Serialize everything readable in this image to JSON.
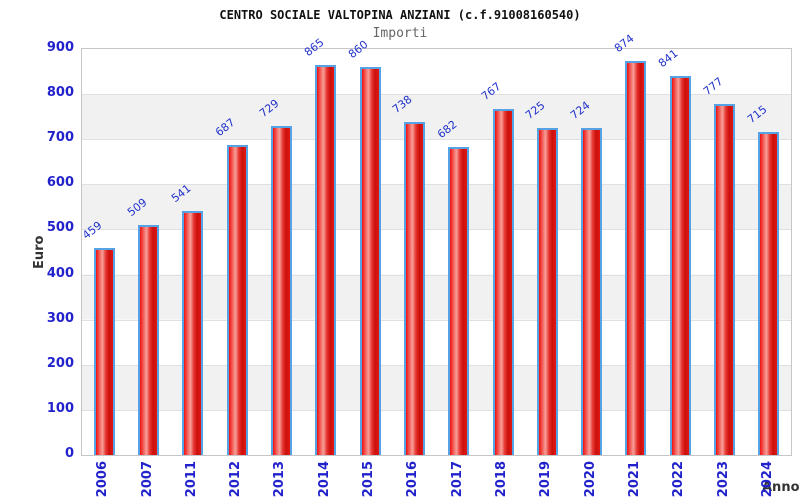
{
  "chart_data": {
    "type": "bar",
    "title": "CENTRO SOCIALE VALTOPINA ANZIANI (c.f.91008160540)",
    "subtitle": "Importi",
    "xlabel": "Anno",
    "ylabel": "Euro",
    "categories": [
      "2006",
      "2007",
      "2011",
      "2012",
      "2013",
      "2014",
      "2015",
      "2016",
      "2017",
      "2018",
      "2019",
      "2020",
      "2021",
      "2022",
      "2023",
      "2024"
    ],
    "values": [
      459,
      509,
      541,
      687,
      729,
      865,
      860,
      738,
      682,
      767,
      725,
      724,
      874,
      841,
      777,
      715
    ],
    "ylim": [
      0,
      900
    ],
    "y_ticks": [
      0,
      100,
      200,
      300,
      400,
      500,
      600,
      700,
      800,
      900
    ],
    "grid": "alternating horizontal bands every 100, band edges as gridlines",
    "legend": "none",
    "value_labels_rotation_deg": -38,
    "x_labels_rotation_deg": 90,
    "colors": {
      "axis_text_blue": "#2222cc",
      "value_label_blue": "#2233cc",
      "bar_red": "#e62520",
      "bar_highlight_pink": "#f8a09a",
      "bar_border_blue": "#55a2e4",
      "band_gray": "#f1f1f1",
      "plot_border_gray": "#c6c6c6",
      "title_black": "#111111",
      "subtitle_gray": "#666666",
      "axis_title_dark": "#333333"
    }
  }
}
